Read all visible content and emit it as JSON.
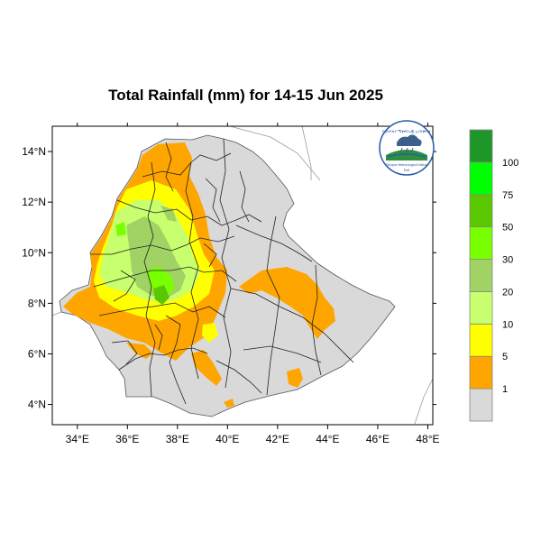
{
  "title": "Total Rainfall (mm) for 14-15 Jun 2025",
  "map": {
    "lat_ticks": [
      "4°N",
      "6°N",
      "8°N",
      "10°N",
      "12°N",
      "14°N"
    ],
    "lon_ticks": [
      "34°E",
      "36°E",
      "38°E",
      "40°E",
      "42°E",
      "44°E",
      "46°E",
      "48°E"
    ],
    "lat_range": [
      3.2,
      15
    ],
    "lon_range": [
      33,
      48.2
    ],
    "land_color": "#d9d9d9",
    "water_color": "#ffffff"
  },
  "legend": {
    "labels": [
      "1",
      "5",
      "10",
      "20",
      "30",
      "50",
      "75",
      "100"
    ],
    "colors": [
      "#d9d9d9",
      "#ffa500",
      "#ffff00",
      "#c8ff6e",
      "#a0d264",
      "#78ff00",
      "#5ac800",
      "#00ff00",
      "#1e9628"
    ]
  },
  "logo": {
    "text_top": "የኢትዮጵያ ሜቲዎሮሎጂ ኢንስቲትዩት",
    "text_bottom": "Ethiopian Meteorological Institute",
    "text_small": "EMI"
  }
}
